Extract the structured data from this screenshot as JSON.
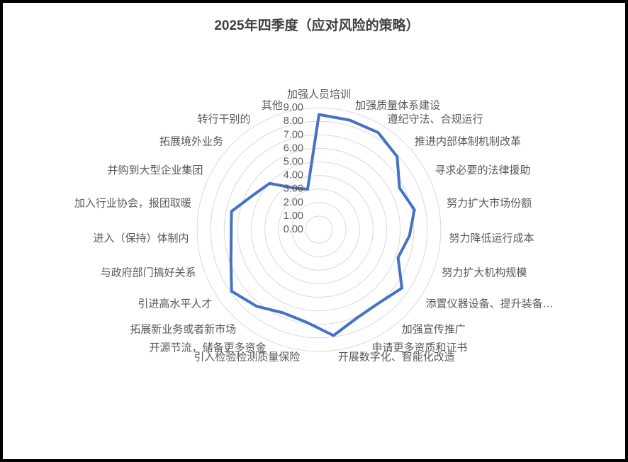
{
  "title": "2025年四季度（应对风险的策略）",
  "chart_data": {
    "type": "radar",
    "title": "2025年四季度（应对风险的策略）",
    "legend": "none",
    "grid": "circular",
    "categories": [
      "加强人员培训",
      "加强质量体系建设",
      "遵纪守法、合规运行",
      "推进内部体制机制改革",
      "寻求必要的法律援助",
      "努力扩大市场份额",
      "努力降低运行成本",
      "努力扩大机构规模",
      "添置仪器设备、提升装备…",
      "加强宣传推广",
      "申请更多资质和证书",
      "开展数字化、智能化改造",
      "引入检验检测质量保险",
      "开源节流，储备更多资金",
      "拓展新业务或者新市场",
      "引进高水平人才",
      "与政府部门搞好关系",
      "进入（保持）体制内",
      "加入行业协会，报团取暖",
      "并购到大型企业集团",
      "拓展境外业务",
      "转行干别的",
      "其他"
    ],
    "values": [
      8.5,
      8.4,
      8.4,
      7.9,
      6.7,
      7.2,
      6.7,
      6.2,
      7.5,
      7.0,
      7.1,
      7.9,
      6.9,
      6.7,
      7.3,
      7.9,
      6.9,
      6.5,
      6.6,
      5.5,
      5.0,
      3.6,
      3.1
    ],
    "radial_axis": {
      "min": 0,
      "max": 9,
      "interval": 1,
      "tick_labels": [
        "0.00",
        "1.00",
        "2.00",
        "3.00",
        "4.00",
        "5.00",
        "6.00",
        "7.00",
        "8.00",
        "9.00"
      ]
    },
    "colors": {
      "series_line": "#4472C4",
      "gridline": "#D9D9D9",
      "tick_label": "#595959",
      "category_label": "#595959",
      "title": "#404040",
      "background": "#FFFFFF",
      "frame_border": "#000000"
    }
  }
}
